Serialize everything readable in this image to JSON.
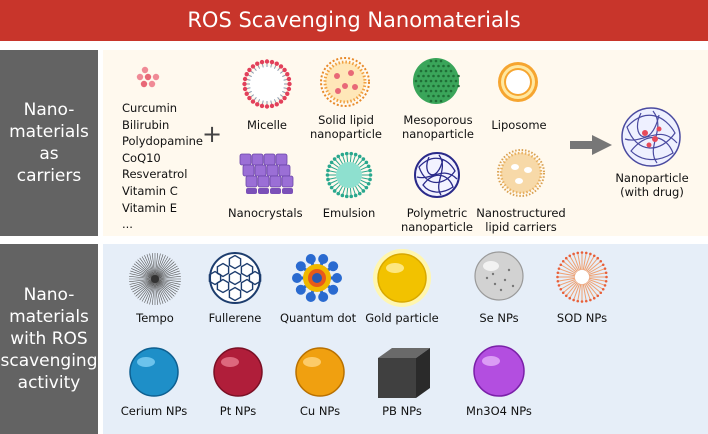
{
  "title": "ROS Scavenging Nanomaterials",
  "colors": {
    "title_bar": "#c8352b",
    "side_panel": "#636363",
    "top_bg": "#fff9ee",
    "bottom_bg": "#e6eef8"
  },
  "carriers_section": {
    "side_label_lines": [
      "Nano-",
      "materials",
      "as",
      "carriers"
    ],
    "drugs": [
      "Curcumin",
      "Bilirubin",
      "Polydopamine",
      "CoQ10",
      "Resveratrol",
      "Vitamin C",
      "Vitamin E",
      "..."
    ],
    "plus": "+",
    "carriers": [
      {
        "label": "Micelle",
        "icon": "micelle-icon"
      },
      {
        "label": "Solid lipid\nnanoparticle",
        "icon": "solid-lipid-nanoparticle-icon"
      },
      {
        "label": "Mesoporous\nnanoparticle",
        "icon": "mesoporous-nanoparticle-icon"
      },
      {
        "label": "Liposome",
        "icon": "liposome-icon"
      },
      {
        "label": "Nanocrystals",
        "icon": "nanocrystals-icon"
      },
      {
        "label": "Emulsion",
        "icon": "emulsion-icon"
      },
      {
        "label": "Polymetric\nnanoparticle",
        "icon": "polymeric-nanoparticle-icon"
      },
      {
        "label": "Nanostructured\nlipid carriers",
        "icon": "nanostructured-lipid-carrier-icon"
      }
    ],
    "result": {
      "label": "Nanoparticle\n(with drug)",
      "icon": "drug-loaded-nanoparticle-icon"
    }
  },
  "scavenging_section": {
    "side_label_lines": [
      "Nano-",
      "materials",
      "with ROS",
      "scavenging",
      "activity"
    ],
    "materials": [
      {
        "label": "Tempo",
        "icon": "tempo-icon"
      },
      {
        "label": "Fullerene",
        "icon": "fullerene-icon"
      },
      {
        "label": "Quantum dot",
        "icon": "quantum-dot-icon"
      },
      {
        "label": "Gold particle",
        "icon": "gold-particle-icon",
        "color": "#f2c200"
      },
      {
        "label": "Se NPs",
        "icon": "se-nps-icon",
        "color": "#c8c8c8"
      },
      {
        "label": "SOD NPs",
        "icon": "sod-nps-icon"
      },
      {
        "label": "Cerium NPs",
        "icon": "cerium-nps-icon",
        "color": "#1e8fc8"
      },
      {
        "label": "Pt NPs",
        "icon": "pt-nps-icon",
        "color": "#b01e3a"
      },
      {
        "label": "Cu NPs",
        "icon": "cu-nps-icon",
        "color": "#f0a010"
      },
      {
        "label": "PB NPs",
        "icon": "pb-nps-icon",
        "color": "#3a3a3a"
      },
      {
        "label": "Mn3O4 NPs",
        "icon": "mn3o4-nps-icon",
        "color": "#b34ee0"
      }
    ]
  }
}
